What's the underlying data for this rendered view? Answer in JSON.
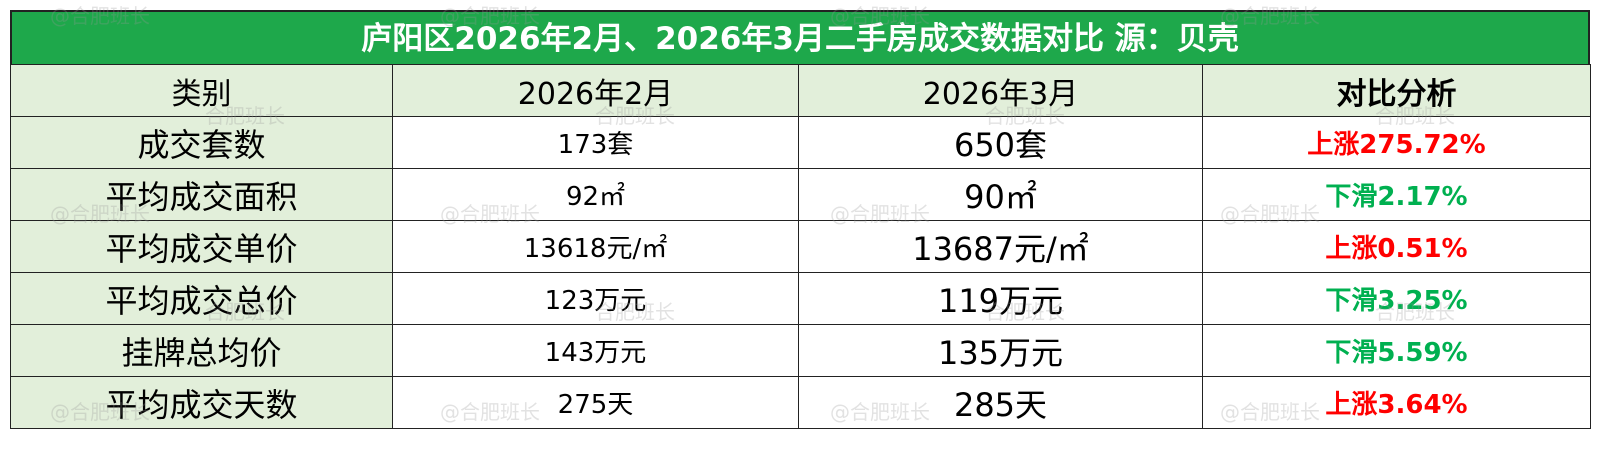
{
  "title": "庐阳区2026年2月、2026年3月二手房成交数据对比 源：贝壳",
  "table": {
    "header": [
      "类别",
      "2026年2月",
      "2026年3月",
      "对比分析"
    ],
    "rows": [
      {
        "category": "成交套数",
        "feb": "173套",
        "mar": "650套",
        "change": "上涨275.72%",
        "color": "#ff0000"
      },
      {
        "category": "平均成交面积",
        "feb": "92㎡",
        "mar": "90㎡",
        "change": "下滑2.17%",
        "color": "#00b050"
      },
      {
        "category": "平均成交单价",
        "feb": "13618元/㎡",
        "mar": "13687元/㎡",
        "change": "上涨0.51%",
        "color": "#ff0000"
      },
      {
        "category": "平均成交总价",
        "feb": "123万元",
        "mar": "119万元",
        "change": "下滑3.25%",
        "color": "#00b050"
      },
      {
        "category": "挂牌总均价",
        "feb": "143万元",
        "mar": "135万元",
        "change": "下滑5.59%",
        "color": "#00b050"
      },
      {
        "category": "平均成交天数",
        "feb": "275天",
        "mar": "285天",
        "change": "上涨3.64%",
        "color": "#ff0000"
      }
    ]
  },
  "watermark": "@合肥班长",
  "watermark_alt": "合肥班长"
}
